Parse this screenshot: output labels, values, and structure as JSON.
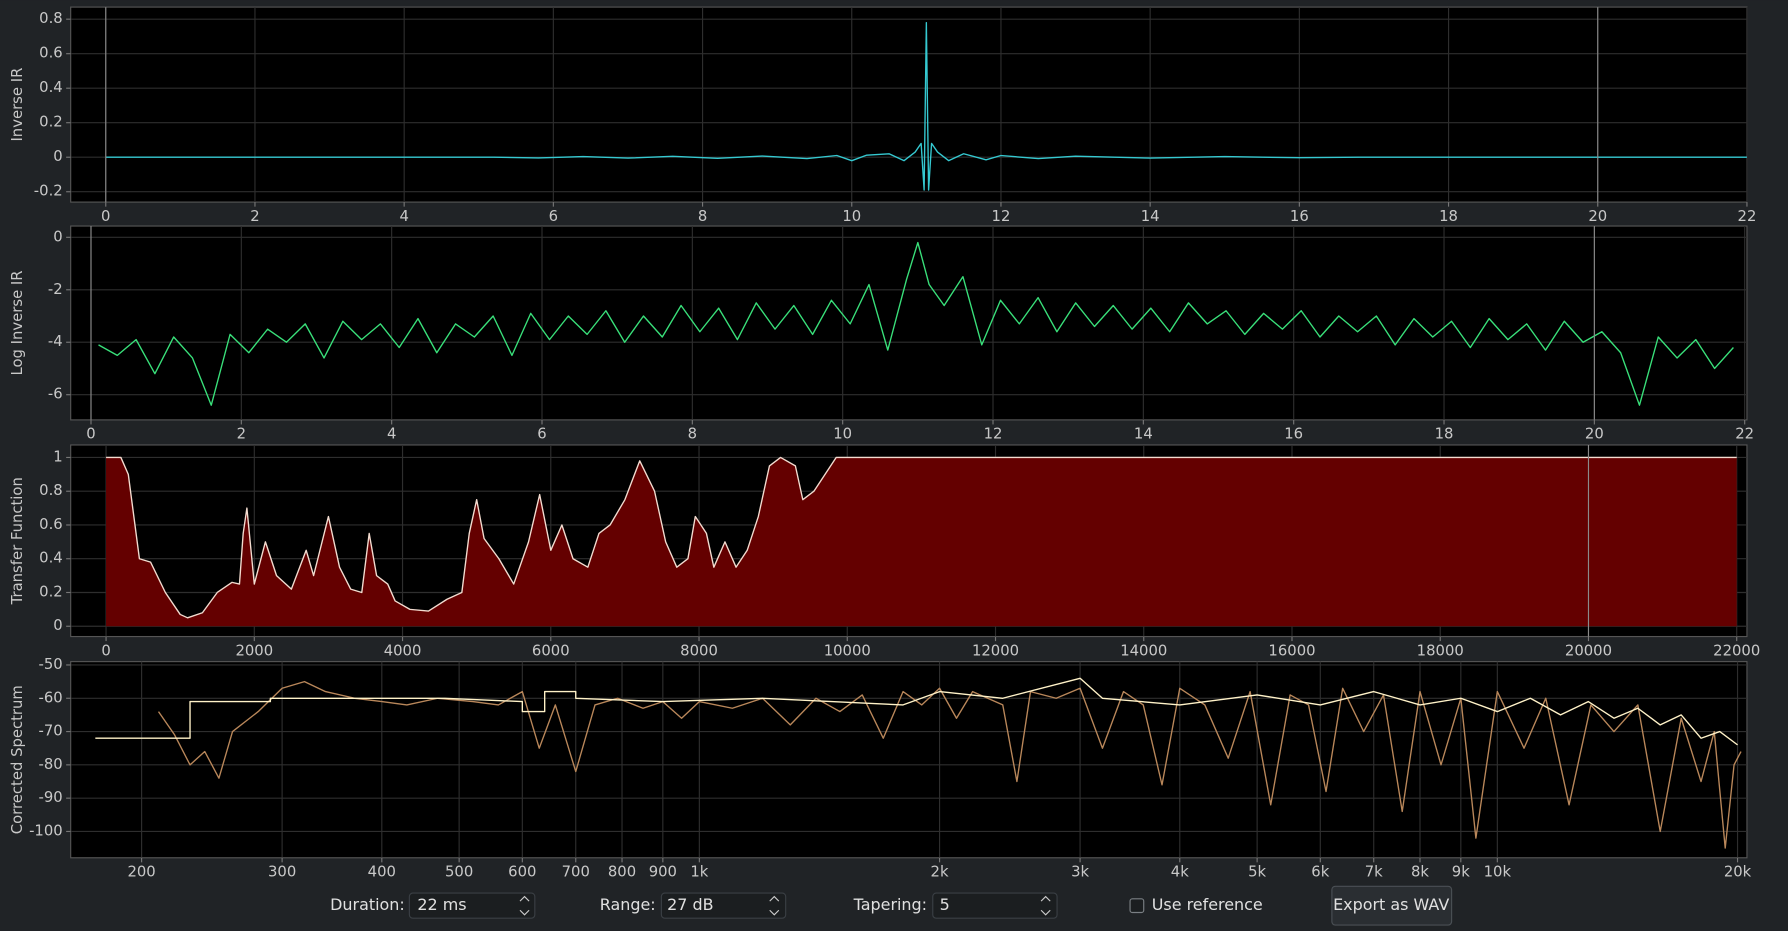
{
  "chart_data": [
    {
      "type": "line",
      "y_label": "Inverse IR",
      "grid": true,
      "xlim": [
        -0.47,
        22.0
      ],
      "ylim": [
        -0.26,
        0.87
      ],
      "xticks": [
        0,
        2,
        4,
        6,
        8,
        10,
        12,
        14,
        16,
        18,
        20,
        22
      ],
      "yticks": [
        0.8,
        0.6,
        0.4,
        0.2,
        0,
        -0.2
      ],
      "cursors": [
        0,
        20
      ],
      "series": [
        {
          "color": "#35c9d1",
          "x": [
            0,
            5.2,
            5.8,
            6.4,
            7.0,
            7.6,
            8.2,
            8.8,
            9.4,
            9.8,
            10.0,
            10.2,
            10.5,
            10.7,
            10.85,
            10.93,
            10.97,
            11.0,
            11.03,
            11.07,
            11.15,
            11.3,
            11.5,
            11.8,
            12.0,
            12.5,
            13.0,
            14.0,
            15.0,
            16.0,
            16.8,
            22
          ],
          "values": [
            0,
            0,
            -0.004,
            0.004,
            -0.005,
            0.005,
            -0.006,
            0.007,
            -0.008,
            0.01,
            -0.02,
            0.012,
            0.02,
            -0.02,
            0.03,
            0.08,
            -0.19,
            0.78,
            -0.19,
            0.08,
            0.03,
            -0.02,
            0.02,
            -0.015,
            0.01,
            -0.008,
            0.006,
            -0.005,
            0.004,
            -0.003,
            0,
            0
          ]
        }
      ]
    },
    {
      "type": "line",
      "y_label": "Log Inverse IR",
      "grid": true,
      "xlim": [
        -0.27,
        22.03
      ],
      "ylim": [
        -6.96,
        0.43
      ],
      "xticks": [
        0,
        2,
        4,
        6,
        8,
        10,
        12,
        14,
        16,
        18,
        20,
        22
      ],
      "yticks": [
        0,
        -2,
        -4,
        -6
      ],
      "cursors": [
        0,
        20
      ],
      "series": [
        {
          "color": "#39e07a",
          "x": [
            0.1,
            0.35,
            0.6,
            0.85,
            1.1,
            1.35,
            1.6,
            1.85,
            2.1,
            2.35,
            2.6,
            2.85,
            3.1,
            3.35,
            3.6,
            3.85,
            4.1,
            4.35,
            4.6,
            4.85,
            5.1,
            5.35,
            5.6,
            5.85,
            6.1,
            6.35,
            6.6,
            6.85,
            7.1,
            7.35,
            7.6,
            7.85,
            8.1,
            8.35,
            8.6,
            8.85,
            9.1,
            9.35,
            9.6,
            9.85,
            10.1,
            10.35,
            10.6,
            10.85,
            11.0,
            11.15,
            11.35,
            11.6,
            11.85,
            12.1,
            12.35,
            12.6,
            12.85,
            13.1,
            13.35,
            13.6,
            13.85,
            14.1,
            14.35,
            14.6,
            14.85,
            15.1,
            15.35,
            15.6,
            15.85,
            16.1,
            16.35,
            16.6,
            16.85,
            17.1,
            17.35,
            17.6,
            17.85,
            18.1,
            18.35,
            18.6,
            18.85,
            19.1,
            19.35,
            19.6,
            19.85,
            20.1,
            20.35,
            20.6,
            20.85,
            21.1,
            21.35,
            21.6,
            21.85
          ],
          "values": [
            -4.1,
            -4.5,
            -3.9,
            -5.2,
            -3.8,
            -4.6,
            -6.4,
            -3.7,
            -4.4,
            -3.5,
            -4.0,
            -3.3,
            -4.6,
            -3.2,
            -3.9,
            -3.3,
            -4.2,
            -3.1,
            -4.4,
            -3.3,
            -3.8,
            -3.0,
            -4.5,
            -2.9,
            -3.9,
            -3.0,
            -3.7,
            -2.8,
            -4.0,
            -3.0,
            -3.8,
            -2.6,
            -3.6,
            -2.7,
            -3.9,
            -2.5,
            -3.5,
            -2.6,
            -3.7,
            -2.4,
            -3.3,
            -1.8,
            -4.3,
            -1.6,
            -0.2,
            -1.8,
            -2.6,
            -1.5,
            -4.1,
            -2.4,
            -3.3,
            -2.3,
            -3.6,
            -2.5,
            -3.4,
            -2.6,
            -3.5,
            -2.7,
            -3.6,
            -2.5,
            -3.3,
            -2.8,
            -3.7,
            -2.9,
            -3.5,
            -2.8,
            -3.8,
            -3.0,
            -3.6,
            -3.0,
            -4.1,
            -3.1,
            -3.8,
            -3.2,
            -4.2,
            -3.1,
            -3.9,
            -3.3,
            -4.3,
            -3.2,
            -4.0,
            -3.6,
            -4.4,
            -6.4,
            -3.8,
            -4.6,
            -3.9,
            -5.0,
            -4.2
          ]
        }
      ]
    },
    {
      "type": "area",
      "y_label": "Transfer Function",
      "grid": true,
      "xlim": [
        -477,
        22138
      ],
      "ylim": [
        -0.061,
        1.074
      ],
      "xticks": [
        0,
        2000,
        4000,
        6000,
        8000,
        10000,
        12000,
        14000,
        16000,
        18000,
        20000,
        22000
      ],
      "yticks": [
        1,
        0.8,
        0.6,
        0.4,
        0.2,
        0
      ],
      "cursors": [
        20000
      ],
      "series": [
        {
          "color": "#f3dcd0",
          "fill": "#640000",
          "x": [
            0,
            200,
            300,
            450,
            600,
            800,
            1000,
            1100,
            1300,
            1500,
            1700,
            1800,
            1850,
            1900,
            2000,
            2150,
            2300,
            2500,
            2700,
            2800,
            3000,
            3150,
            3300,
            3450,
            3550,
            3650,
            3800,
            3900,
            4100,
            4350,
            4600,
            4800,
            4900,
            5000,
            5100,
            5300,
            5500,
            5700,
            5850,
            6000,
            6150,
            6300,
            6500,
            6650,
            6800,
            7000,
            7200,
            7400,
            7550,
            7700,
            7850,
            7950,
            8100,
            8200,
            8350,
            8500,
            8650,
            8800,
            8950,
            9100,
            9300,
            9400,
            9550,
            9700,
            9850,
            22000
          ],
          "values": [
            1,
            1,
            0.9,
            0.4,
            0.38,
            0.2,
            0.07,
            0.05,
            0.08,
            0.2,
            0.26,
            0.25,
            0.55,
            0.7,
            0.25,
            0.5,
            0.3,
            0.22,
            0.45,
            0.3,
            0.65,
            0.35,
            0.22,
            0.2,
            0.55,
            0.3,
            0.25,
            0.15,
            0.1,
            0.09,
            0.16,
            0.2,
            0.55,
            0.75,
            0.52,
            0.4,
            0.25,
            0.5,
            0.78,
            0.45,
            0.6,
            0.4,
            0.35,
            0.55,
            0.6,
            0.75,
            0.98,
            0.8,
            0.5,
            0.35,
            0.4,
            0.65,
            0.55,
            0.35,
            0.5,
            0.35,
            0.45,
            0.65,
            0.95,
            1,
            0.95,
            0.75,
            0.8,
            0.9,
            1,
            1
          ]
        }
      ]
    },
    {
      "type": "line",
      "y_label": "Corrected Spectrum",
      "grid": true,
      "xlog": true,
      "xlim": [
        163,
        20550
      ],
      "ylim": [
        -107.9,
        -49
      ],
      "xticks": [
        200,
        300,
        400,
        500,
        600,
        700,
        800,
        900,
        {
          "value": 1000,
          "label": "1k"
        },
        {
          "value": 2000,
          "label": "2k"
        },
        {
          "value": 3000,
          "label": "3k"
        },
        {
          "value": 4000,
          "label": "4k"
        },
        {
          "value": 5000,
          "label": "5k"
        },
        {
          "value": 6000,
          "label": "6k"
        },
        {
          "value": 7000,
          "label": "7k"
        },
        {
          "value": 8000,
          "label": "8k"
        },
        {
          "value": 9000,
          "label": "9k"
        },
        {
          "value": 10000,
          "label": "10k"
        },
        {
          "value": 20000,
          "label": "20k"
        }
      ],
      "yticks": [
        -50,
        -60,
        -70,
        -80,
        -90,
        -100
      ],
      "series": [
        {
          "color": "#b9875a",
          "x": [
            210,
            220,
            230,
            240,
            250,
            260,
            280,
            300,
            320,
            340,
            370,
            400,
            430,
            470,
            520,
            560,
            600,
            630,
            660,
            700,
            740,
            790,
            850,
            900,
            950,
            1000,
            1100,
            1200,
            1300,
            1400,
            1500,
            1600,
            1700,
            1800,
            1900,
            2000,
            2100,
            2200,
            2400,
            2500,
            2600,
            2800,
            3000,
            3200,
            3400,
            3600,
            3800,
            4000,
            4300,
            4600,
            4900,
            5200,
            5500,
            5800,
            6100,
            6400,
            6800,
            7200,
            7600,
            8000,
            8500,
            9000,
            9400,
            10000,
            10800,
            11500,
            12300,
            13100,
            14000,
            15000,
            16000,
            17000,
            18000,
            18700,
            19300,
            19800,
            20200
          ],
          "values": [
            -64,
            -71,
            -80,
            -76,
            -84,
            -70,
            -64,
            -57,
            -55,
            -58,
            -60,
            -61,
            -62,
            -60,
            -61,
            -62,
            -58,
            -75,
            -62,
            -82,
            -62,
            -60,
            -63,
            -61,
            -66,
            -61,
            -63,
            -60,
            -68,
            -60,
            -64,
            -59,
            -72,
            -58,
            -62,
            -57,
            -66,
            -58,
            -62,
            -85,
            -58,
            -60,
            -57,
            -75,
            -58,
            -62,
            -86,
            -57,
            -62,
            -78,
            -58,
            -92,
            -59,
            -62,
            -88,
            -57,
            -70,
            -59,
            -94,
            -58,
            -80,
            -60,
            -102,
            -58,
            -75,
            -60,
            -92,
            -62,
            -70,
            -62,
            -100,
            -66,
            -85,
            -70,
            -105,
            -80,
            -76
          ]
        },
        {
          "color": "#fff2c8",
          "x": [
            175,
            230,
            230,
            290,
            290,
            480,
            600,
            600,
            640,
            640,
            700,
            700,
            900,
            1200,
            1800,
            2000,
            2400,
            3000,
            3200,
            4000,
            5000,
            6000,
            7000,
            8000,
            9000,
            10000,
            11000,
            12000,
            13000,
            14000,
            15000,
            16000,
            17000,
            18000,
            19000,
            20000
          ],
          "values": [
            -72,
            -72,
            -61,
            -61,
            -60,
            -60,
            -61,
            -64,
            -64,
            -58,
            -58,
            -60,
            -61,
            -60,
            -62,
            -58,
            -60,
            -54,
            -60,
            -62,
            -59,
            -62,
            -58,
            -62,
            -60,
            -64,
            -60,
            -65,
            -61,
            -66,
            -63,
            -68,
            -65,
            -72,
            -70,
            -74
          ]
        }
      ]
    }
  ],
  "controls": {
    "duration": {
      "label": "Duration:",
      "value": "22 ms"
    },
    "range": {
      "label": "Range:",
      "value": "27 dB"
    },
    "tapering": {
      "label": "Tapering:",
      "value": "5"
    },
    "use_reference": {
      "label": "Use reference",
      "checked": false
    },
    "export": {
      "label": "Export as WAV"
    }
  }
}
